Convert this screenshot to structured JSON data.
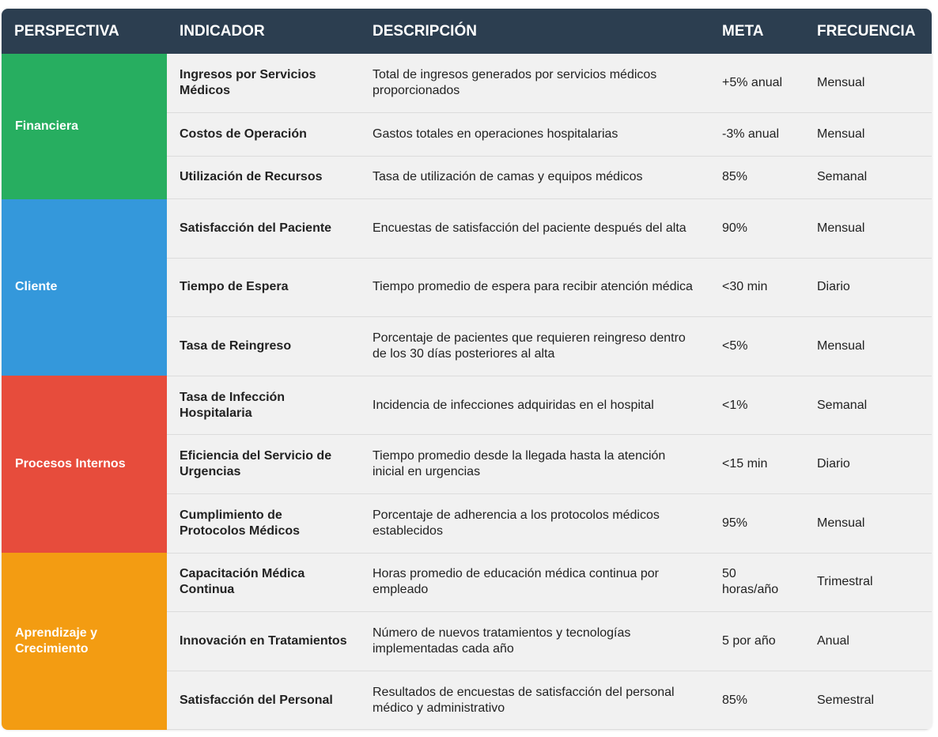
{
  "table": {
    "header": [
      "PERSPECTIVA",
      "INDICADOR",
      "DESCRIPCIÓN",
      "META",
      "FRECUENCIA"
    ],
    "groups": [
      {
        "perspective": "Financiera",
        "rows": [
          [
            "Ingresos por Servicios Médicos",
            "Total de ingresos generados por servicios médicos proporcionados",
            "+5% anual",
            "Mensual"
          ],
          [
            "Costos de Operación",
            "Gastos totales en operaciones hospitalarias",
            "-3% anual",
            "Mensual"
          ],
          [
            "Utilización de Recursos",
            "Tasa de utilización de camas y equipos médicos",
            "85%",
            "Semanal"
          ]
        ]
      },
      {
        "perspective": "Cliente",
        "rows": [
          [
            "Satisfacción del Paciente",
            "Encuestas de satisfacción del paciente después del alta",
            "90%",
            "Mensual"
          ],
          [
            "Tiempo de Espera",
            "Tiempo promedio de espera para recibir atención médica",
            "<30 min",
            "Diario"
          ],
          [
            "Tasa de Reingreso",
            "Porcentaje de pacientes que requieren reingreso dentro de los 30 días posteriores al alta",
            "<5%",
            "Mensual"
          ]
        ]
      },
      {
        "perspective": "Procesos Internos",
        "rows": [
          [
            "Tasa de Infección Hospitalaria",
            "Incidencia de infecciones adquiridas en el hospital",
            "<1%",
            "Semanal"
          ],
          [
            "Eficiencia del Servicio de Urgencias",
            "Tiempo promedio desde la llegada hasta la atención inicial en urgencias",
            "<15 min",
            "Diario"
          ],
          [
            "Cumplimiento de Protocolos Médicos",
            "Porcentaje de adherencia a los protocolos médicos establecidos",
            "95%",
            "Mensual"
          ]
        ]
      },
      {
        "perspective": "Aprendizaje y Crecimiento",
        "rows": [
          [
            "Capacitación Médica Continua",
            "Horas promedio de educación médica continua por empleado",
            "50 horas/año",
            "Trimestral"
          ],
          [
            "Innovación en Tratamientos",
            "Número de nuevos tratamientos y tecnologías implementadas cada año",
            "5 por año",
            "Anual"
          ],
          [
            "Satisfacción del Personal",
            "Resultados de encuestas de satisfacción del personal médico y administrativo",
            "85%",
            "Semestral"
          ]
        ]
      }
    ]
  }
}
